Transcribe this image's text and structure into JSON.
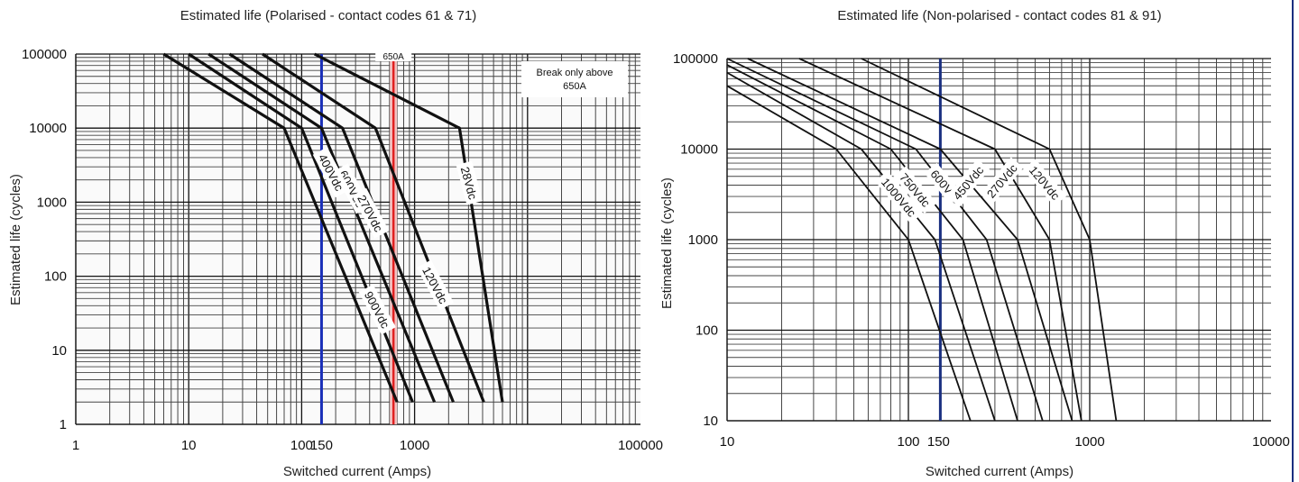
{
  "chart_data": [
    {
      "type": "line",
      "title": "Estimated life (Polarised - contact codes 61 & 71)",
      "xlabel": "Switched current (Amps)",
      "ylabel": "Estimated life (cycles)",
      "x_scale": "log",
      "y_scale": "log",
      "xlim": [
        1,
        100000
      ],
      "ylim": [
        1,
        100000
      ],
      "x_ticks": [
        {
          "value": 1,
          "label": "1"
        },
        {
          "value": 10,
          "label": "10"
        },
        {
          "value": 100,
          "label": "100"
        },
        {
          "value": 150,
          "label": "150"
        },
        {
          "value": 1000,
          "label": "1000"
        },
        {
          "value": 100000,
          "label": "100000"
        }
      ],
      "y_ticks": [
        {
          "value": 1,
          "label": "1"
        },
        {
          "value": 10,
          "label": "10"
        },
        {
          "value": 100,
          "label": "100"
        },
        {
          "value": 1000,
          "label": "1000"
        },
        {
          "value": 10000,
          "label": "10000"
        },
        {
          "value": 100000,
          "label": "100000"
        }
      ],
      "grid": true,
      "series": [
        {
          "name": "900Vdc",
          "points": [
            [
              6,
              100000
            ],
            [
              70,
              10000
            ],
            [
              700,
              2
            ]
          ],
          "label_at": [
            460,
            35
          ],
          "label_rot": 62
        },
        {
          "name": "600Vdc",
          "points": [
            [
              10,
              100000
            ],
            [
              100,
              10000
            ],
            [
              960,
              2
            ]
          ],
          "label_at": [
            275,
            1500
          ],
          "label_rot": 62
        },
        {
          "name": "400Vdc",
          "points": [
            [
              15,
              100000
            ],
            [
              150,
              10000
            ],
            [
              1500,
              2
            ]
          ],
          "label_at": [
            180,
            2500
          ],
          "label_rot": 62
        },
        {
          "name": "270Vdc",
          "points": [
            [
              23,
              100000
            ],
            [
              230,
              10000
            ],
            [
              2200,
              2
            ]
          ],
          "label_at": [
            400,
            700
          ],
          "label_rot": 62
        },
        {
          "name": "120Vdc",
          "points": [
            [
              45,
              100000
            ],
            [
              450,
              10000
            ],
            [
              4100,
              2
            ]
          ],
          "label_at": [
            1500,
            75
          ],
          "label_rot": 62
        },
        {
          "name": "28Vdc",
          "points": [
            [
              130,
              100000
            ],
            [
              2500,
              10000
            ],
            [
              6000,
              2
            ]
          ],
          "label_at": [
            3000,
            1800
          ],
          "label_rot": 75
        }
      ],
      "reference_lines": [
        {
          "x": 150,
          "color": "#1a2fb8"
        },
        {
          "x": 650,
          "color": "#e02020",
          "label": "650A"
        }
      ],
      "annotations": [
        "Break only above",
        "650A"
      ]
    },
    {
      "type": "line",
      "title": "Estimated life (Non-polarised - contact codes 81 & 91)",
      "xlabel": "Switched current (Amps)",
      "ylabel": "Estimated life (cycles)",
      "x_scale": "log",
      "y_scale": "log",
      "xlim": [
        10,
        10000
      ],
      "ylim": [
        10,
        100000
      ],
      "x_ticks": [
        {
          "value": 10,
          "label": "10"
        },
        {
          "value": 100,
          "label": "100"
        },
        {
          "value": 150,
          "label": "150"
        },
        {
          "value": 1000,
          "label": "1000"
        },
        {
          "value": 10000,
          "label": "10000"
        }
      ],
      "y_ticks": [
        {
          "value": 10,
          "label": "10"
        },
        {
          "value": 100,
          "label": "100"
        },
        {
          "value": 1000,
          "label": "1000"
        },
        {
          "value": 10000,
          "label": "10000"
        },
        {
          "value": 100000,
          "label": "100000"
        }
      ],
      "grid": true,
      "series": [
        {
          "name": "1000Vdc",
          "points": [
            [
              10,
              50000
            ],
            [
              40,
              10000
            ],
            [
              100,
              1000
            ],
            [
              220,
              10
            ]
          ],
          "label_at": [
            88,
            2900
          ],
          "label_rot": 50
        },
        {
          "name": "750Vdc",
          "points": [
            [
              10,
              70000
            ],
            [
              55,
              10000
            ],
            [
              140,
              1000
            ],
            [
              300,
              10
            ]
          ],
          "label_at": [
            108,
            3500
          ],
          "label_rot": 50
        },
        {
          "name": "600Vdc",
          "points": [
            [
              10,
              85000
            ],
            [
              80,
              10000
            ],
            [
              200,
              1000
            ],
            [
              400,
              10
            ]
          ],
          "label_at": [
            160,
            3800
          ],
          "label_rot": 50
        },
        {
          "name": "450Vdc",
          "points": [
            [
              10,
              100000
            ],
            [
              110,
              10000
            ],
            [
              270,
              1000
            ],
            [
              550,
              10
            ]
          ],
          "label_at": [
            215,
            4200
          ],
          "label_rot": -50
        },
        {
          "name": "270Vdc",
          "points": [
            [
              13,
              100000
            ],
            [
              150,
              10000
            ],
            [
              400,
              1000
            ],
            [
              800,
              10
            ]
          ],
          "label_at": [
            330,
            4400
          ],
          "label_rot": -50
        },
        {
          "name": "120Vdc",
          "points": [
            [
              25,
              100000
            ],
            [
              300,
              10000
            ],
            [
              600,
              1000
            ],
            [
              900,
              10
            ]
          ],
          "label_at": [
            560,
            4200
          ],
          "label_rot": 50
        },
        {
          "points": [
            [
              55,
              100000
            ],
            [
              600,
              10000
            ],
            [
              1000,
              1000
            ],
            [
              1400,
              10
            ]
          ]
        }
      ],
      "reference_lines": [
        {
          "x": 150,
          "color": "#1a2f80"
        }
      ]
    }
  ]
}
